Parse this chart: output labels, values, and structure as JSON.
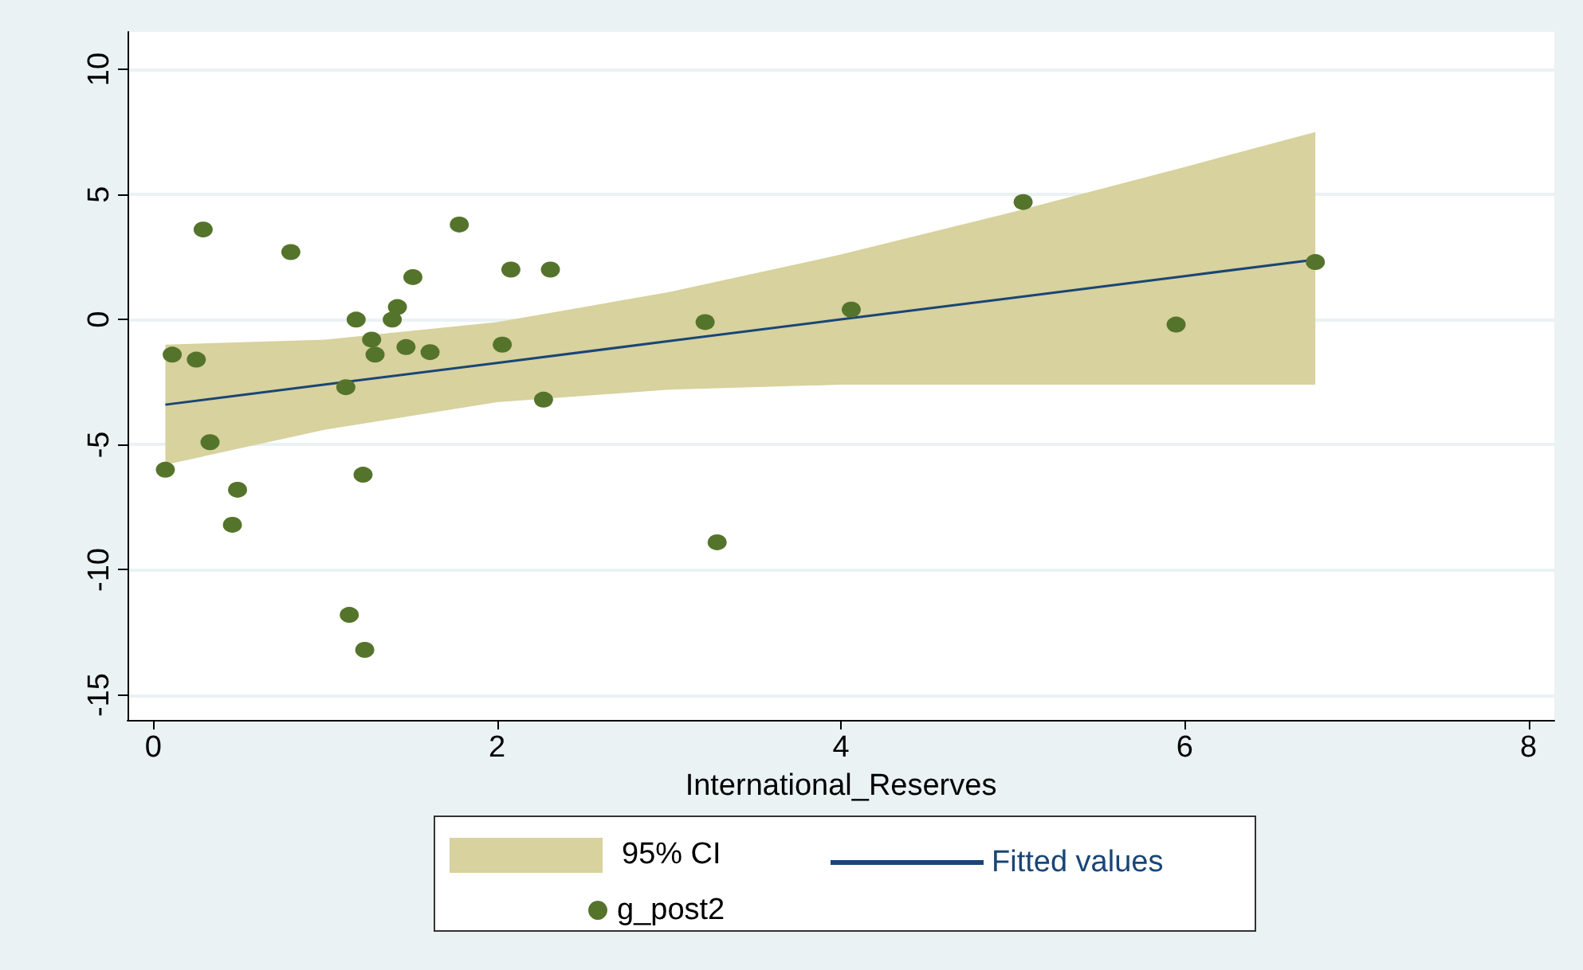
{
  "chart_data": {
    "type": "scatter",
    "xlabel": "International_Reserves",
    "xlim": [
      -0.15,
      8.15
    ],
    "ylim": [
      -16,
      11.5
    ],
    "xticks": [
      0,
      2,
      4,
      6,
      8
    ],
    "yticks": [
      -15,
      -10,
      -5,
      0,
      5,
      10
    ],
    "grid": "y",
    "legend": "bottom",
    "annotations": [
      "95% CI"
    ],
    "series": [
      {
        "name": "Fitted values",
        "type": "line",
        "color": "#1a4576",
        "x": [
          0.07,
          1,
          2,
          3,
          4,
          5,
          6,
          6.76
        ],
        "values": [
          -3.4,
          -2.59,
          -1.73,
          -0.86,
          0.01,
          0.87,
          1.74,
          2.4
        ],
        "lower": [
          -5.8,
          -4.4,
          -3.3,
          -2.8,
          -2.6,
          -2.6,
          -2.6,
          -2.6
        ],
        "upper": [
          -1.0,
          -0.8,
          -0.1,
          1.1,
          2.6,
          4.3,
          6.1,
          7.5
        ]
      },
      {
        "name": "g_post2",
        "type": "scatter",
        "marker": "circle",
        "color": "#55742b",
        "x": [
          0.07,
          0.11,
          0.25,
          0.29,
          0.33,
          0.46,
          0.49,
          0.8,
          1.12,
          1.14,
          1.18,
          1.22,
          1.23,
          1.27,
          1.29,
          1.39,
          1.42,
          1.47,
          1.51,
          1.61,
          1.78,
          2.03,
          2.08,
          2.27,
          2.31,
          3.21,
          3.28,
          4.06,
          5.06,
          5.95,
          6.76
        ],
        "values": [
          -6.0,
          -1.4,
          -1.6,
          3.6,
          -4.9,
          -8.2,
          -6.8,
          2.7,
          -2.7,
          -11.8,
          0.0,
          -6.2,
          -13.2,
          -0.8,
          -1.4,
          0.0,
          0.5,
          -1.1,
          1.7,
          -1.3,
          3.8,
          -1.0,
          2.0,
          -3.2,
          2.0,
          -0.1,
          -8.9,
          0.4,
          4.7,
          -0.2,
          2.3
        ]
      }
    ]
  }
}
